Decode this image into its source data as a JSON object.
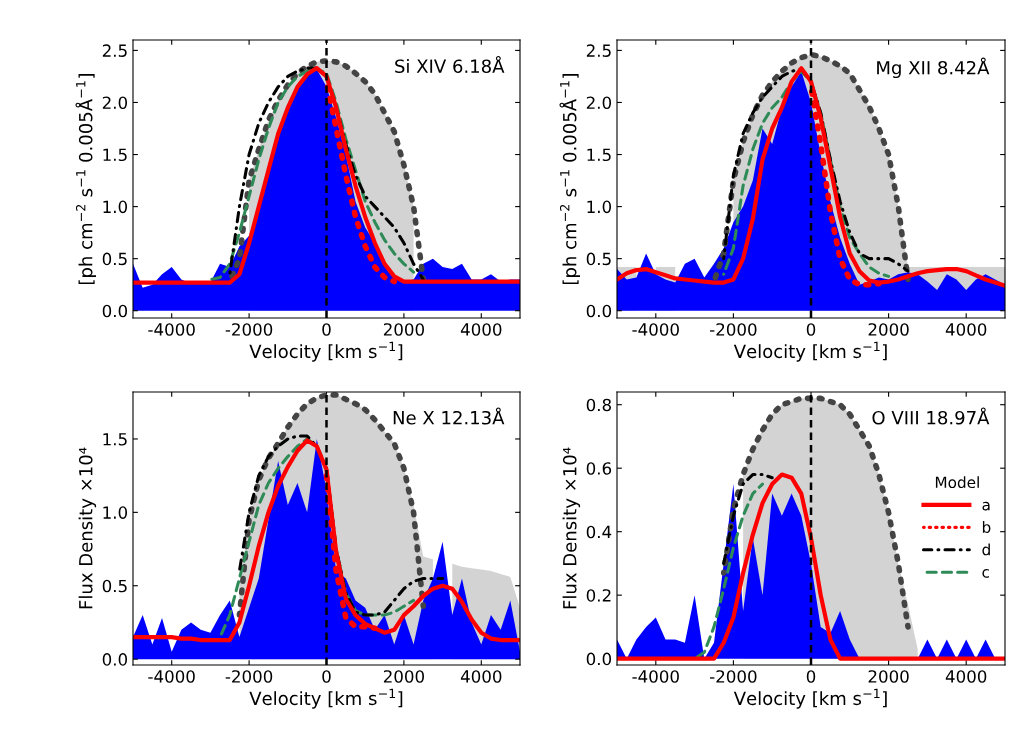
{
  "chart_data": [
    {
      "type": "line",
      "xlabel": "Velocity [km s$^{−1}$]",
      "ylabel": "[ph cm$^{−2}$ s$^{−1}$ 0.005Å$^{−1}$]",
      "annotations": [
        "Si XIV 6.18Å"
      ],
      "xlim": [
        -5000,
        5000
      ],
      "xticks": [
        -4000,
        -2000,
        0,
        2000,
        4000
      ],
      "ylim": [
        -0.07,
        2.6
      ],
      "yticks": [
        {
          "value": 0,
          "label": "0.0"
        },
        {
          "value": 0.5,
          "label": "0.5"
        },
        {
          "value": 1,
          "label": "1.0"
        },
        {
          "value": 1.5,
          "label": "1.5"
        },
        {
          "value": 2,
          "label": "2.0"
        },
        {
          "value": 2.5,
          "label": "2.5"
        }
      ],
      "legend": false,
      "ref_lines": [
        {
          "axis": "x",
          "value": 0,
          "color": "#000000",
          "line_style": "dashed"
        }
      ],
      "x": [
        -5000,
        -4750,
        -4500,
        -4250,
        -4000,
        -3750,
        -3500,
        -3250,
        -3000,
        -2750,
        -2500,
        -2250,
        -2000,
        -1750,
        -1500,
        -1250,
        -1000,
        -750,
        -500,
        -250,
        0,
        250,
        500,
        750,
        1000,
        1250,
        1500,
        1750,
        2000,
        2250,
        2500,
        2750,
        3000,
        3250,
        3500,
        3750,
        4000,
        4250,
        4500,
        4750,
        5000
      ],
      "series": [
        {
          "type": "area",
          "color": "#d3d3d3",
          "values": [
            null,
            null,
            null,
            null,
            null,
            null,
            null,
            null,
            null,
            null,
            null,
            null,
            1.25,
            1.55,
            1.83,
            2.02,
            2.17,
            2.28,
            2.35,
            2.39,
            2.4,
            2.39,
            2.35,
            2.28,
            2.2,
            2.08,
            1.9,
            1.72,
            1.4,
            1.0,
            null,
            null,
            null,
            null,
            null,
            null,
            null,
            null,
            null,
            null,
            null
          ]
        },
        {
          "type": "area",
          "color": "#0000ff",
          "values": [
            0.45,
            0.22,
            0.25,
            0.35,
            0.42,
            0.3,
            0.26,
            0.27,
            0.27,
            0.45,
            0.42,
            0.62,
            0.72,
            0.95,
            1.3,
            1.65,
            1.95,
            2.15,
            2.27,
            2.32,
            2.15,
            1.85,
            1.5,
            1.05,
            0.8,
            0.65,
            0.45,
            0.33,
            0.28,
            0.3,
            0.45,
            0.5,
            0.42,
            0.4,
            0.45,
            0.3,
            0.3,
            0.35,
            0.28,
            0.3,
            0.3
          ]
        },
        {
          "type": "line",
          "color": "#444444",
          "line_style": "dotted",
          "values": [
            null,
            null,
            null,
            null,
            null,
            null,
            null,
            null,
            null,
            null,
            0.28,
            0.5,
            1.25,
            1.55,
            1.83,
            2.02,
            2.17,
            2.28,
            2.35,
            2.39,
            2.4,
            2.39,
            2.35,
            2.28,
            2.2,
            2.08,
            1.9,
            1.72,
            1.4,
            1.0,
            0.3,
            null,
            null,
            null,
            null,
            null,
            null,
            null,
            null,
            null,
            null
          ]
        },
        {
          "type": "line",
          "color": "#2e8b57",
          "line_style": "dashed",
          "values": [
            null,
            null,
            null,
            null,
            null,
            null,
            null,
            null,
            0.3,
            0.32,
            0.45,
            0.75,
            1.1,
            1.45,
            1.75,
            2.0,
            2.15,
            2.25,
            2.3,
            2.32,
            2.28,
            2.0,
            1.65,
            1.35,
            1.05,
            0.85,
            0.68,
            0.55,
            0.45,
            0.37,
            null,
            null,
            null,
            null,
            null,
            null,
            null,
            null,
            null,
            null,
            null
          ]
        },
        {
          "type": "line",
          "color": "#000000",
          "line_style": "dashdot",
          "values": [
            null,
            null,
            null,
            null,
            null,
            null,
            null,
            null,
            null,
            null,
            0.35,
            1.0,
            1.5,
            1.8,
            2.0,
            2.15,
            2.25,
            2.3,
            2.33,
            2.33,
            2.25,
            1.95,
            1.6,
            1.3,
            1.1,
            1.0,
            0.9,
            0.8,
            0.65,
            0.45,
            0.3,
            null,
            null,
            null,
            null,
            null,
            null,
            null,
            null,
            null,
            null
          ]
        },
        {
          "type": "line",
          "color": "#ff0000",
          "line_style": "dotted",
          "values": [
            null,
            null,
            null,
            null,
            null,
            null,
            null,
            null,
            null,
            null,
            null,
            null,
            null,
            null,
            null,
            null,
            null,
            null,
            null,
            null,
            2.2,
            1.75,
            1.3,
            0.9,
            0.62,
            0.42,
            0.32,
            0.28,
            null,
            null,
            null,
            null,
            null,
            null,
            null,
            null,
            null,
            null,
            null,
            null,
            null
          ]
        },
        {
          "type": "line",
          "color": "#ff0000",
          "line_style": "solid",
          "values": [
            0.27,
            0.27,
            0.27,
            0.27,
            0.27,
            0.27,
            0.27,
            0.27,
            0.27,
            0.27,
            0.27,
            0.35,
            0.65,
            1.0,
            1.35,
            1.7,
            1.95,
            2.15,
            2.27,
            2.33,
            2.25,
            1.95,
            1.55,
            1.2,
            0.9,
            0.65,
            0.45,
            0.33,
            0.28,
            0.28,
            0.28,
            0.28,
            0.28,
            0.28,
            0.28,
            0.28,
            0.28,
            0.28,
            0.28,
            0.28,
            0.28
          ]
        }
      ]
    },
    {
      "type": "line",
      "xlabel": "Velocity [km s$^{−1}$]",
      "ylabel": "[ph cm$^{−2}$ s$^{−1}$ 0.005Å$^{−1}$]",
      "annotations": [
        "Mg XII 8.42Å"
      ],
      "xlim": [
        -5000,
        5000
      ],
      "xticks": [
        -4000,
        -2000,
        0,
        2000,
        4000
      ],
      "ylim": [
        -0.07,
        2.6
      ],
      "yticks": [
        {
          "value": 0,
          "label": "0.0"
        },
        {
          "value": 0.5,
          "label": "0.5"
        },
        {
          "value": 1,
          "label": "1.0"
        },
        {
          "value": 1.5,
          "label": "1.5"
        },
        {
          "value": 2,
          "label": "2.0"
        },
        {
          "value": 2.5,
          "label": "2.5"
        }
      ],
      "legend": false,
      "ref_lines": [
        {
          "axis": "x",
          "value": 0,
          "color": "#000000",
          "line_style": "dashed"
        }
      ],
      "x": [
        -5000,
        -4750,
        -4500,
        -4250,
        -4000,
        -3750,
        -3500,
        -3250,
        -3000,
        -2750,
        -2500,
        -2250,
        -2000,
        -1750,
        -1500,
        -1250,
        -1000,
        -750,
        -500,
        -250,
        0,
        250,
        500,
        750,
        1000,
        1250,
        1500,
        1750,
        2000,
        2250,
        2500,
        2750,
        3000,
        3250,
        3500,
        3750,
        4000,
        4250,
        4500,
        4750,
        5000
      ],
      "series": [
        {
          "type": "area",
          "color": "#d3d3d3",
          "values": [
            0.42,
            0.42,
            0.42,
            null,
            0.42,
            0.42,
            0.42,
            null,
            null,
            null,
            null,
            null,
            1.25,
            1.62,
            1.88,
            2.07,
            2.2,
            2.3,
            2.38,
            2.43,
            2.46,
            2.44,
            2.4,
            2.35,
            2.28,
            2.12,
            1.96,
            1.75,
            1.5,
            1.0,
            0.42,
            0.42,
            0.42,
            0.42,
            0.42,
            0.42,
            0.42,
            0.42,
            0.42,
            0.42,
            0.42
          ]
        },
        {
          "type": "area",
          "color": "#0000ff",
          "values": [
            0.4,
            0.3,
            0.32,
            0.55,
            0.35,
            0.3,
            0.27,
            0.45,
            0.5,
            0.32,
            0.45,
            0.6,
            0.85,
            1.0,
            1.25,
            1.75,
            1.6,
            1.95,
            2.15,
            2.3,
            2.0,
            1.5,
            1.05,
            0.7,
            0.45,
            0.25,
            0.28,
            0.32,
            0.3,
            0.35,
            0.37,
            0.35,
            0.28,
            0.2,
            0.35,
            0.3,
            0.2,
            0.3,
            0.35,
            0.3,
            0.25
          ]
        },
        {
          "type": "line",
          "color": "#444444",
          "line_style": "dotted",
          "values": [
            null,
            null,
            null,
            null,
            null,
            null,
            null,
            null,
            null,
            null,
            0.28,
            0.55,
            1.25,
            1.62,
            1.88,
            2.07,
            2.2,
            2.3,
            2.38,
            2.43,
            2.46,
            2.44,
            2.4,
            2.35,
            2.28,
            2.12,
            1.96,
            1.75,
            1.5,
            1.0,
            0.3,
            null,
            null,
            null,
            null,
            null,
            null,
            null,
            null,
            null,
            null
          ]
        },
        {
          "type": "line",
          "color": "#2e8b57",
          "line_style": "dashed",
          "values": [
            null,
            null,
            null,
            null,
            null,
            null,
            null,
            null,
            null,
            null,
            null,
            0.35,
            0.6,
            1.2,
            1.55,
            1.8,
            1.95,
            2.05,
            2.2,
            2.3,
            2.2,
            1.9,
            1.45,
            1.0,
            0.7,
            0.55,
            0.42,
            0.36,
            0.33,
            null,
            null,
            null,
            null,
            null,
            null,
            null,
            null,
            null,
            null,
            null,
            null
          ]
        },
        {
          "type": "line",
          "color": "#000000",
          "line_style": "dashdot",
          "values": [
            null,
            null,
            null,
            null,
            null,
            null,
            null,
            null,
            null,
            null,
            null,
            0.5,
            1.3,
            1.7,
            1.9,
            2.05,
            2.15,
            2.25,
            2.3,
            2.32,
            2.2,
            1.9,
            1.45,
            1.05,
            0.75,
            0.55,
            0.5,
            0.5,
            0.5,
            0.45,
            0.38,
            null,
            null,
            null,
            null,
            null,
            null,
            null,
            null,
            null,
            null
          ]
        },
        {
          "type": "line",
          "color": "#ff0000",
          "line_style": "dotted",
          "values": [
            null,
            null,
            null,
            null,
            null,
            null,
            null,
            null,
            null,
            null,
            null,
            null,
            null,
            null,
            null,
            null,
            null,
            null,
            null,
            null,
            2.15,
            1.6,
            0.95,
            0.5,
            0.3,
            0.25,
            0.25,
            0.26,
            null,
            null,
            null,
            null,
            null,
            null,
            null,
            null,
            null,
            null,
            null,
            null,
            null
          ]
        },
        {
          "type": "line",
          "color": "#ff0000",
          "line_style": "solid",
          "values": [
            0.3,
            0.36,
            0.39,
            0.4,
            0.37,
            0.34,
            0.31,
            0.3,
            0.29,
            0.28,
            0.27,
            0.27,
            0.3,
            0.5,
            0.88,
            1.45,
            1.75,
            1.95,
            2.2,
            2.33,
            2.2,
            1.85,
            1.38,
            0.9,
            0.55,
            0.38,
            0.29,
            0.27,
            0.28,
            0.3,
            0.33,
            0.36,
            0.38,
            0.39,
            0.4,
            0.4,
            0.38,
            0.34,
            0.3,
            0.27,
            0.24
          ]
        }
      ]
    },
    {
      "type": "line",
      "xlabel": "Velocity [km s$^{−1}$]",
      "ylabel": "Flux Density ×10⁴",
      "annotations": [
        "Ne X 12.13Å"
      ],
      "xlim": [
        -5000,
        5000
      ],
      "xticks": [
        -4000,
        -2000,
        0,
        2000,
        4000
      ],
      "ylim": [
        -0.04,
        1.82
      ],
      "yticks": [
        {
          "value": 0,
          "label": "0.0"
        },
        {
          "value": 0.5,
          "label": "0.5"
        },
        {
          "value": 1,
          "label": "1.0"
        },
        {
          "value": 1.5,
          "label": "1.5"
        }
      ],
      "legend": false,
      "ref_lines": [
        {
          "axis": "x",
          "value": 0,
          "color": "#000000",
          "line_style": "dashed"
        }
      ],
      "x": [
        -5000,
        -4750,
        -4500,
        -4250,
        -4000,
        -3750,
        -3500,
        -3250,
        -3000,
        -2750,
        -2500,
        -2250,
        -2000,
        -1750,
        -1500,
        -1250,
        -1000,
        -750,
        -500,
        -250,
        0,
        250,
        500,
        750,
        1000,
        1250,
        1500,
        1750,
        2000,
        2250,
        2500,
        2750,
        3000,
        3250,
        3500,
        3750,
        4000,
        4250,
        4500,
        4750,
        5000
      ],
      "series": [
        {
          "type": "area",
          "color": "#d3d3d3",
          "values": [
            null,
            null,
            null,
            null,
            null,
            null,
            null,
            null,
            null,
            null,
            null,
            0.5,
            0.95,
            1.22,
            1.37,
            1.47,
            1.58,
            1.67,
            1.74,
            1.78,
            1.8,
            1.8,
            1.77,
            1.74,
            1.7,
            1.63,
            1.55,
            1.47,
            1.3,
            1.05,
            0.7,
            0.68,
            null,
            0.65,
            0.63,
            0.62,
            0.61,
            0.6,
            0.58,
            0.56,
            0.35
          ]
        },
        {
          "type": "area",
          "color": "#0000ff",
          "values": [
            0.15,
            0.3,
            0.1,
            0.28,
            0.05,
            0.2,
            0.25,
            0.2,
            0.18,
            0.3,
            0.4,
            0.15,
            0.35,
            0.55,
            0.95,
            1.35,
            1.05,
            1.2,
            1.0,
            1.5,
            1.15,
            0.6,
            0.55,
            0.4,
            0.35,
            0.2,
            0.3,
            0.1,
            0.3,
            0.1,
            0.4,
            0.55,
            0.8,
            0.3,
            0.55,
            0.25,
            0.1,
            0.3,
            0.2,
            0.4,
            0.05
          ]
        },
        {
          "type": "line",
          "color": "#444444",
          "line_style": "dotted",
          "values": [
            null,
            null,
            null,
            null,
            null,
            null,
            null,
            null,
            null,
            null,
            null,
            0.3,
            0.95,
            1.22,
            1.37,
            1.47,
            1.58,
            1.67,
            1.74,
            1.78,
            1.8,
            1.8,
            1.77,
            1.74,
            1.7,
            1.63,
            1.55,
            1.47,
            1.3,
            1.0,
            0.36,
            null,
            null,
            null,
            null,
            null,
            null,
            null,
            null,
            null,
            null
          ]
        },
        {
          "type": "line",
          "color": "#2e8b57",
          "line_style": "dashed",
          "values": [
            null,
            null,
            null,
            null,
            null,
            null,
            null,
            null,
            null,
            0.15,
            0.3,
            0.55,
            0.8,
            1.05,
            1.2,
            1.3,
            1.38,
            1.45,
            1.5,
            1.45,
            1.3,
            0.75,
            0.45,
            0.33,
            0.3,
            0.3,
            0.3,
            0.32,
            0.36,
            0.4,
            null,
            null,
            null,
            null,
            null,
            null,
            null,
            null,
            null,
            null,
            null
          ]
        },
        {
          "type": "line",
          "color": "#000000",
          "line_style": "dashdot",
          "values": [
            null,
            null,
            null,
            null,
            null,
            null,
            null,
            null,
            null,
            null,
            null,
            0.6,
            1.0,
            1.25,
            1.38,
            1.45,
            1.5,
            1.52,
            1.52,
            1.45,
            1.3,
            0.75,
            0.45,
            0.32,
            0.3,
            0.3,
            0.32,
            0.4,
            0.48,
            0.53,
            0.55,
            0.55,
            0.55,
            null,
            null,
            null,
            null,
            null,
            null,
            null,
            null
          ]
        },
        {
          "type": "line",
          "color": "#ff0000",
          "line_style": "dotted",
          "values": [
            null,
            null,
            null,
            null,
            null,
            null,
            null,
            null,
            null,
            null,
            null,
            null,
            null,
            null,
            null,
            null,
            null,
            null,
            null,
            null,
            1.25,
            0.6,
            0.28,
            0.22,
            0.22,
            0.21,
            null,
            null,
            null,
            null,
            null,
            null,
            null,
            null,
            null,
            null,
            null,
            null,
            null,
            null,
            null
          ]
        },
        {
          "type": "line",
          "color": "#ff0000",
          "line_style": "solid",
          "values": [
            0.15,
            0.15,
            0.15,
            0.15,
            0.15,
            0.14,
            0.14,
            0.13,
            0.13,
            0.13,
            0.13,
            0.25,
            0.5,
            0.77,
            1.0,
            1.18,
            1.31,
            1.42,
            1.49,
            1.45,
            1.29,
            0.73,
            0.41,
            0.3,
            0.24,
            0.21,
            0.18,
            0.2,
            0.3,
            0.36,
            0.43,
            0.48,
            0.5,
            0.48,
            0.39,
            0.27,
            0.18,
            0.14,
            0.13,
            0.13,
            0.13
          ]
        }
      ]
    },
    {
      "type": "line",
      "xlabel": "Velocity [km s$^{−1}$]",
      "ylabel": "Flux Density ×10⁴",
      "annotations": [
        "O VIII 18.97Å"
      ],
      "xlim": [
        -5000,
        5000
      ],
      "xticks": [
        -4000,
        -2000,
        0,
        2000,
        4000
      ],
      "ylim": [
        -0.02,
        0.84
      ],
      "yticks": [
        {
          "value": 0,
          "label": "0.0"
        },
        {
          "value": 0.2,
          "label": "0.2"
        },
        {
          "value": 0.4,
          "label": "0.4"
        },
        {
          "value": 0.6,
          "label": "0.6"
        },
        {
          "value": 0.8,
          "label": "0.8"
        }
      ],
      "legend": "right",
      "legend_title": "Model",
      "ref_lines": [
        {
          "axis": "x",
          "value": 0,
          "color": "#000000",
          "line_style": "dashed"
        }
      ],
      "x": [
        -5000,
        -4750,
        -4500,
        -4250,
        -4000,
        -3750,
        -3500,
        -3250,
        -3000,
        -2750,
        -2500,
        -2250,
        -2000,
        -1750,
        -1500,
        -1250,
        -1000,
        -750,
        -500,
        -250,
        0,
        250,
        500,
        750,
        1000,
        1250,
        1500,
        1750,
        2000,
        2250,
        2500,
        2750,
        3000,
        3250,
        3500,
        3750,
        4000,
        4250,
        4500,
        4750,
        5000
      ],
      "series": [
        {
          "type": "area",
          "color": "#d3d3d3",
          "values": [
            null,
            null,
            null,
            null,
            null,
            null,
            null,
            null,
            null,
            null,
            null,
            null,
            null,
            0.58,
            0.66,
            0.72,
            0.77,
            0.8,
            0.81,
            0.82,
            0.82,
            0.82,
            0.81,
            0.8,
            0.77,
            0.72,
            0.67,
            0.58,
            0.46,
            0.3,
            0.17,
            0.03,
            null,
            null,
            null,
            null,
            null,
            null,
            null,
            null,
            null
          ]
        },
        {
          "type": "area",
          "color": "#0000ff",
          "values": [
            0.06,
            0.0,
            0.06,
            0.1,
            0.13,
            0.06,
            0.06,
            0.05,
            0.2,
            0.0,
            0.05,
            0.3,
            0.55,
            0.15,
            0.38,
            0.2,
            0.52,
            0.45,
            0.52,
            0.45,
            0.3,
            0.1,
            0.08,
            0.15,
            0.06,
            0.0,
            0.0,
            0.0,
            0.0,
            0.0,
            0.0,
            0.0,
            0.06,
            0.0,
            0.06,
            0.0,
            0.06,
            0.0,
            0.06,
            0.0,
            0.0
          ]
        },
        {
          "type": "line",
          "color": "#444444",
          "line_style": "dotted",
          "values": [
            null,
            null,
            null,
            null,
            null,
            null,
            null,
            null,
            null,
            null,
            null,
            0.27,
            0.47,
            0.58,
            0.66,
            0.72,
            0.77,
            0.8,
            0.81,
            0.82,
            0.82,
            0.82,
            0.81,
            0.8,
            0.77,
            0.72,
            0.67,
            0.58,
            0.46,
            0.3,
            0.1,
            null,
            null,
            null,
            null,
            null,
            null,
            null,
            null,
            null,
            null
          ]
        },
        {
          "type": "line",
          "name": "c",
          "color": "#2e8b57",
          "line_style": "dashed",
          "values": [
            null,
            null,
            null,
            null,
            null,
            null,
            null,
            null,
            0.0,
            0.02,
            0.1,
            0.22,
            0.35,
            0.45,
            0.52,
            0.55,
            null,
            null,
            null,
            null,
            null,
            null,
            null,
            null,
            null,
            null,
            null,
            null,
            null,
            null,
            null,
            null,
            null,
            null,
            null,
            null,
            null,
            null,
            null,
            null,
            null
          ]
        },
        {
          "type": "line",
          "name": "d",
          "color": "#000000",
          "line_style": "dashdot",
          "values": [
            null,
            null,
            null,
            null,
            null,
            null,
            null,
            null,
            null,
            null,
            null,
            0.3,
            0.45,
            0.55,
            0.58,
            0.58,
            0.57,
            null,
            null,
            null,
            null,
            null,
            null,
            null,
            null,
            null,
            null,
            null,
            null,
            null,
            null,
            null,
            null,
            null,
            null,
            null,
            null,
            null,
            null,
            null,
            null
          ]
        },
        {
          "type": "line",
          "name": "b",
          "color": "#ff0000",
          "line_style": "dotted",
          "values": [
            null,
            null,
            null,
            null,
            null,
            null,
            null,
            null,
            null,
            null,
            null,
            null,
            null,
            null,
            null,
            null,
            null,
            null,
            null,
            null,
            null,
            null,
            null,
            null,
            null,
            null,
            null,
            null,
            null,
            null,
            null,
            null,
            null,
            null,
            null,
            null,
            null,
            null,
            null,
            null,
            null
          ]
        },
        {
          "type": "line",
          "name": "a",
          "color": "#ff0000",
          "line_style": "solid",
          "values": [
            0,
            0,
            0,
            0,
            0,
            0,
            0,
            0,
            0,
            0,
            0,
            0.05,
            0.13,
            0.27,
            0.39,
            0.49,
            0.55,
            0.58,
            0.57,
            0.52,
            0.38,
            0.2,
            0.06,
            0,
            0,
            0,
            0,
            0,
            0,
            0,
            0,
            0,
            0,
            0,
            0,
            0,
            0,
            0,
            0,
            0,
            0
          ]
        }
      ]
    }
  ]
}
